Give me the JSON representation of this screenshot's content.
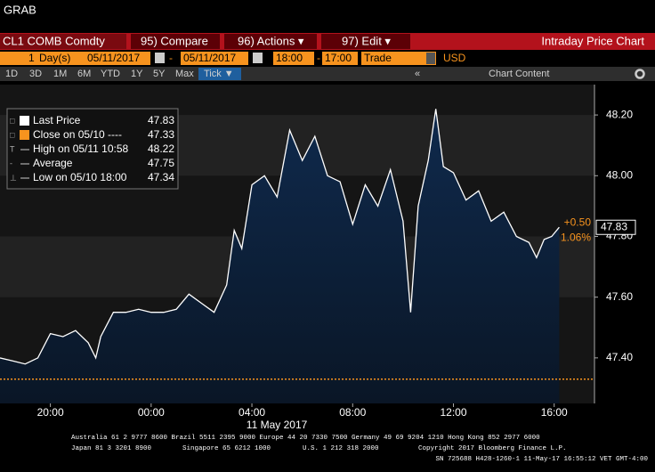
{
  "window_title": "GRAB",
  "toolbar": {
    "security": "CL1 COMB Comdty",
    "compare": "95) Compare",
    "actions": "96) Actions ▾",
    "edit": "97) Edit ▾",
    "function_name": "Intraday Price Chart"
  },
  "settings_bar": {
    "period_count": "1",
    "period_unit": "Day(s)",
    "start_date": "05/11/2017",
    "date_separator": "-",
    "end_date": "05/11/2017",
    "start_time": "18:00",
    "time_separator": "-",
    "end_time": "17:00",
    "event": "Trade",
    "currency": "USD"
  },
  "range_bar": {
    "buttons": [
      "1D",
      "3D",
      "1M",
      "6M",
      "YTD",
      "1Y",
      "5Y",
      "Max"
    ],
    "active": "Tick ▼",
    "collapse": "«",
    "chart_content": "Chart Content"
  },
  "chart_data": {
    "type": "area",
    "x_label": "11 May 2017",
    "xlim": [
      0,
      23.6
    ],
    "xticks": [
      {
        "value": 2,
        "label": "20:00"
      },
      {
        "value": 6,
        "label": "00:00"
      },
      {
        "value": 10,
        "label": "04:00"
      },
      {
        "value": 14,
        "label": "08:00"
      },
      {
        "value": 18,
        "label": "12:00"
      },
      {
        "value": 22,
        "label": "16:00"
      }
    ],
    "ylim": [
      47.25,
      48.3
    ],
    "yticks": [
      {
        "value": 47.4,
        "label": "47.40"
      },
      {
        "value": 47.6,
        "label": "47.60"
      },
      {
        "value": 47.8,
        "label": "47.80"
      },
      {
        "value": 48.0,
        "label": "48.00"
      },
      {
        "value": 48.2,
        "label": "48.20"
      }
    ],
    "series": [
      {
        "name": "Last Price",
        "color": "#ffffff",
        "fill": "#0f2a4d",
        "x": [
          0,
          0.5,
          1.0,
          1.5,
          2.0,
          2.5,
          3.0,
          3.5,
          3.8,
          4.0,
          4.5,
          5.0,
          5.5,
          6.0,
          6.5,
          7.0,
          7.5,
          8.0,
          8.5,
          9.0,
          9.3,
          9.6,
          10.0,
          10.5,
          11.0,
          11.5,
          12.0,
          12.5,
          13.0,
          13.5,
          14.0,
          14.5,
          15.0,
          15.5,
          16.0,
          16.3,
          16.6,
          17.0,
          17.3,
          17.6,
          18.0,
          18.5,
          19.0,
          19.5,
          20.0,
          20.5,
          21.0,
          21.3,
          21.6,
          21.9,
          22.2
        ],
        "values": [
          47.4,
          47.39,
          47.38,
          47.4,
          47.48,
          47.47,
          47.49,
          47.45,
          47.4,
          47.47,
          47.55,
          47.55,
          47.56,
          47.55,
          47.55,
          47.56,
          47.61,
          47.58,
          47.55,
          47.64,
          47.82,
          47.76,
          47.97,
          48.0,
          47.93,
          48.15,
          48.05,
          48.13,
          48.0,
          47.98,
          47.84,
          47.97,
          47.9,
          48.02,
          47.85,
          47.55,
          47.9,
          48.05,
          48.22,
          48.03,
          48.01,
          47.92,
          47.95,
          47.85,
          47.88,
          47.8,
          47.78,
          47.73,
          47.79,
          47.8,
          47.83
        ]
      }
    ],
    "close_line": {
      "value": 47.33,
      "color": "#f7931e"
    },
    "change": {
      "value": 0.5,
      "label": "+0.50"
    },
    "change_percent": {
      "value": 1.06,
      "label": "1.06%"
    },
    "legend_entries": [
      {
        "label": "Last Price",
        "value": 47.83,
        "color": "#ffffff"
      },
      {
        "label": "Close on 05/10 ----",
        "value": 47.33,
        "color": "#f7931e"
      },
      {
        "label": "High on 05/11 10:58",
        "value": 48.22
      },
      {
        "label": "Average",
        "value": 47.75
      },
      {
        "label": "Low on 05/10 18:00",
        "value": 47.34
      }
    ]
  },
  "footer": [
    "Australia 61 2 9777 8600 Brazil 5511 2395 9000 Europe 44 20 7330 7500 Germany 49 69 9204 1210 Hong Kong 852 2977 6000",
    "Japan 81 3 3201 8900",
    "Singapore 65 6212 1000",
    "U.S. 1 212 318 2000",
    "Copyright 2017 Bloomberg Finance L.P.",
    "SN 725688 H428-1260-1 11-May-17 16:55:12 VET  GMT-4:00"
  ]
}
